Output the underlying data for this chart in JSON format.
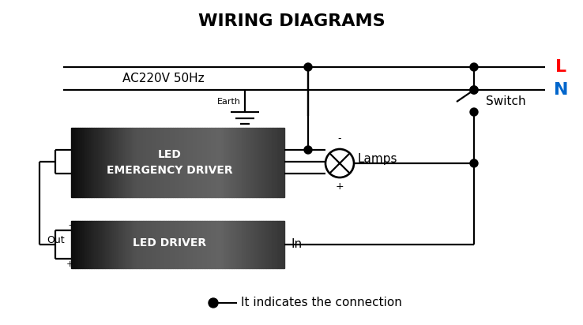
{
  "title": "WIRING DIAGRAMS",
  "ac_label": "AC220V 50Hz",
  "L_label": "L",
  "N_label": "N",
  "switch_label": "Switch",
  "earth_label": "Earth",
  "lamps_label": "Lamps",
  "out_label": "Out",
  "in_label": "In",
  "plus_label": "+",
  "minus_label": "-",
  "driver1_label": "LED\nEMERGENCY DRIVER",
  "driver2_label": "LED DRIVER",
  "legend_dot_label": "It indicates the connection",
  "bg_color": "#ffffff",
  "line_color": "#000000",
  "L_color": "#ff0000",
  "N_color": "#0066cc",
  "title_fontsize": 16,
  "label_fontsize": 11,
  "small_fontsize": 8,
  "lw": 1.6
}
